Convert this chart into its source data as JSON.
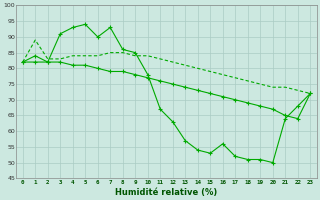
{
  "xlabel": "Humidité relative (%)",
  "background_color": "#cce8e0",
  "grid_color": "#aaccc4",
  "line_color": "#00aa00",
  "ylim": [
    45,
    100
  ],
  "xlim": [
    -0.5,
    23.5
  ],
  "yticks": [
    45,
    50,
    55,
    60,
    65,
    70,
    75,
    80,
    85,
    90,
    95,
    100
  ],
  "xticks": [
    0,
    1,
    2,
    3,
    4,
    5,
    6,
    7,
    8,
    9,
    10,
    11,
    12,
    13,
    14,
    15,
    16,
    17,
    18,
    19,
    20,
    21,
    22,
    23
  ],
  "series": [
    {
      "y": [
        82,
        84,
        82,
        91,
        93,
        94,
        90,
        93,
        86,
        85,
        78,
        67,
        63,
        57,
        54,
        53,
        56,
        52,
        51,
        51,
        50,
        64,
        68,
        72
      ],
      "has_markers": true
    },
    {
      "y": [
        82,
        89,
        83,
        83,
        84,
        84,
        84,
        85,
        85,
        84,
        84,
        83,
        82,
        81,
        80,
        79,
        78,
        77,
        76,
        75,
        74,
        74,
        73,
        72
      ],
      "has_markers": false
    },
    {
      "y": [
        82,
        82,
        82,
        82,
        81,
        81,
        80,
        79,
        79,
        78,
        77,
        76,
        75,
        74,
        73,
        72,
        71,
        70,
        69,
        68,
        67,
        65,
        64,
        72
      ],
      "has_markers": true
    }
  ]
}
